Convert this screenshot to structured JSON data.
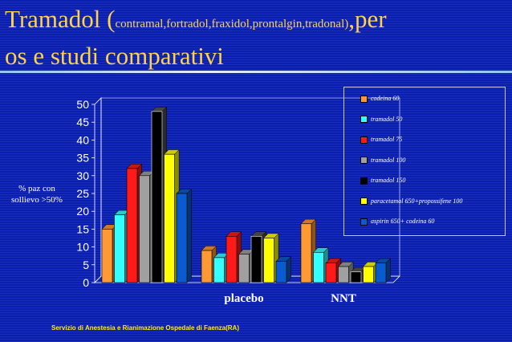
{
  "title": {
    "main": "Tramadol (",
    "brands": "contramal,fortradol,fraxidol,prontalgin,tradonal)",
    "per": ",per",
    "line2": "os e studi comparativi"
  },
  "footer": "Servizio di Anestesia e Rianimazione Ospedale di Faenza(RA)",
  "chart_data": {
    "type": "bar",
    "categories": [
      "",
      "placebo",
      "NNT"
    ],
    "ylabel": "% paz con sollievo >50%",
    "ylabel_lines": [
      "% paz con",
      "sollievo >50%"
    ],
    "ylim": [
      0,
      50
    ],
    "yticks": [
      0,
      5,
      10,
      15,
      20,
      25,
      30,
      35,
      40,
      45,
      50
    ],
    "legend_position": "top-right",
    "series": [
      {
        "name": "codeina 60",
        "color": "#ff9933",
        "values": [
          15,
          9,
          16.5
        ]
      },
      {
        "name": "tramadol 50",
        "color": "#33ffff",
        "values": [
          19,
          7,
          8.5
        ]
      },
      {
        "name": "tramadol 75",
        "color": "#ff1a1a",
        "values": [
          32,
          13,
          5.5
        ]
      },
      {
        "name": "tramadol 100",
        "color": "#a0a0a0",
        "values": [
          30,
          8,
          4.5
        ]
      },
      {
        "name": "tramadol 150",
        "color": "#000000",
        "values": [
          48,
          13,
          3
        ]
      },
      {
        "name": "paracetamol 650+propossifene 100",
        "color": "#ffff00",
        "values": [
          36,
          12.5,
          4.5
        ]
      },
      {
        "name": "aspirin 650+ codeina 60",
        "color": "#0a5ad0",
        "values": [
          25,
          6,
          5.5
        ]
      }
    ]
  }
}
